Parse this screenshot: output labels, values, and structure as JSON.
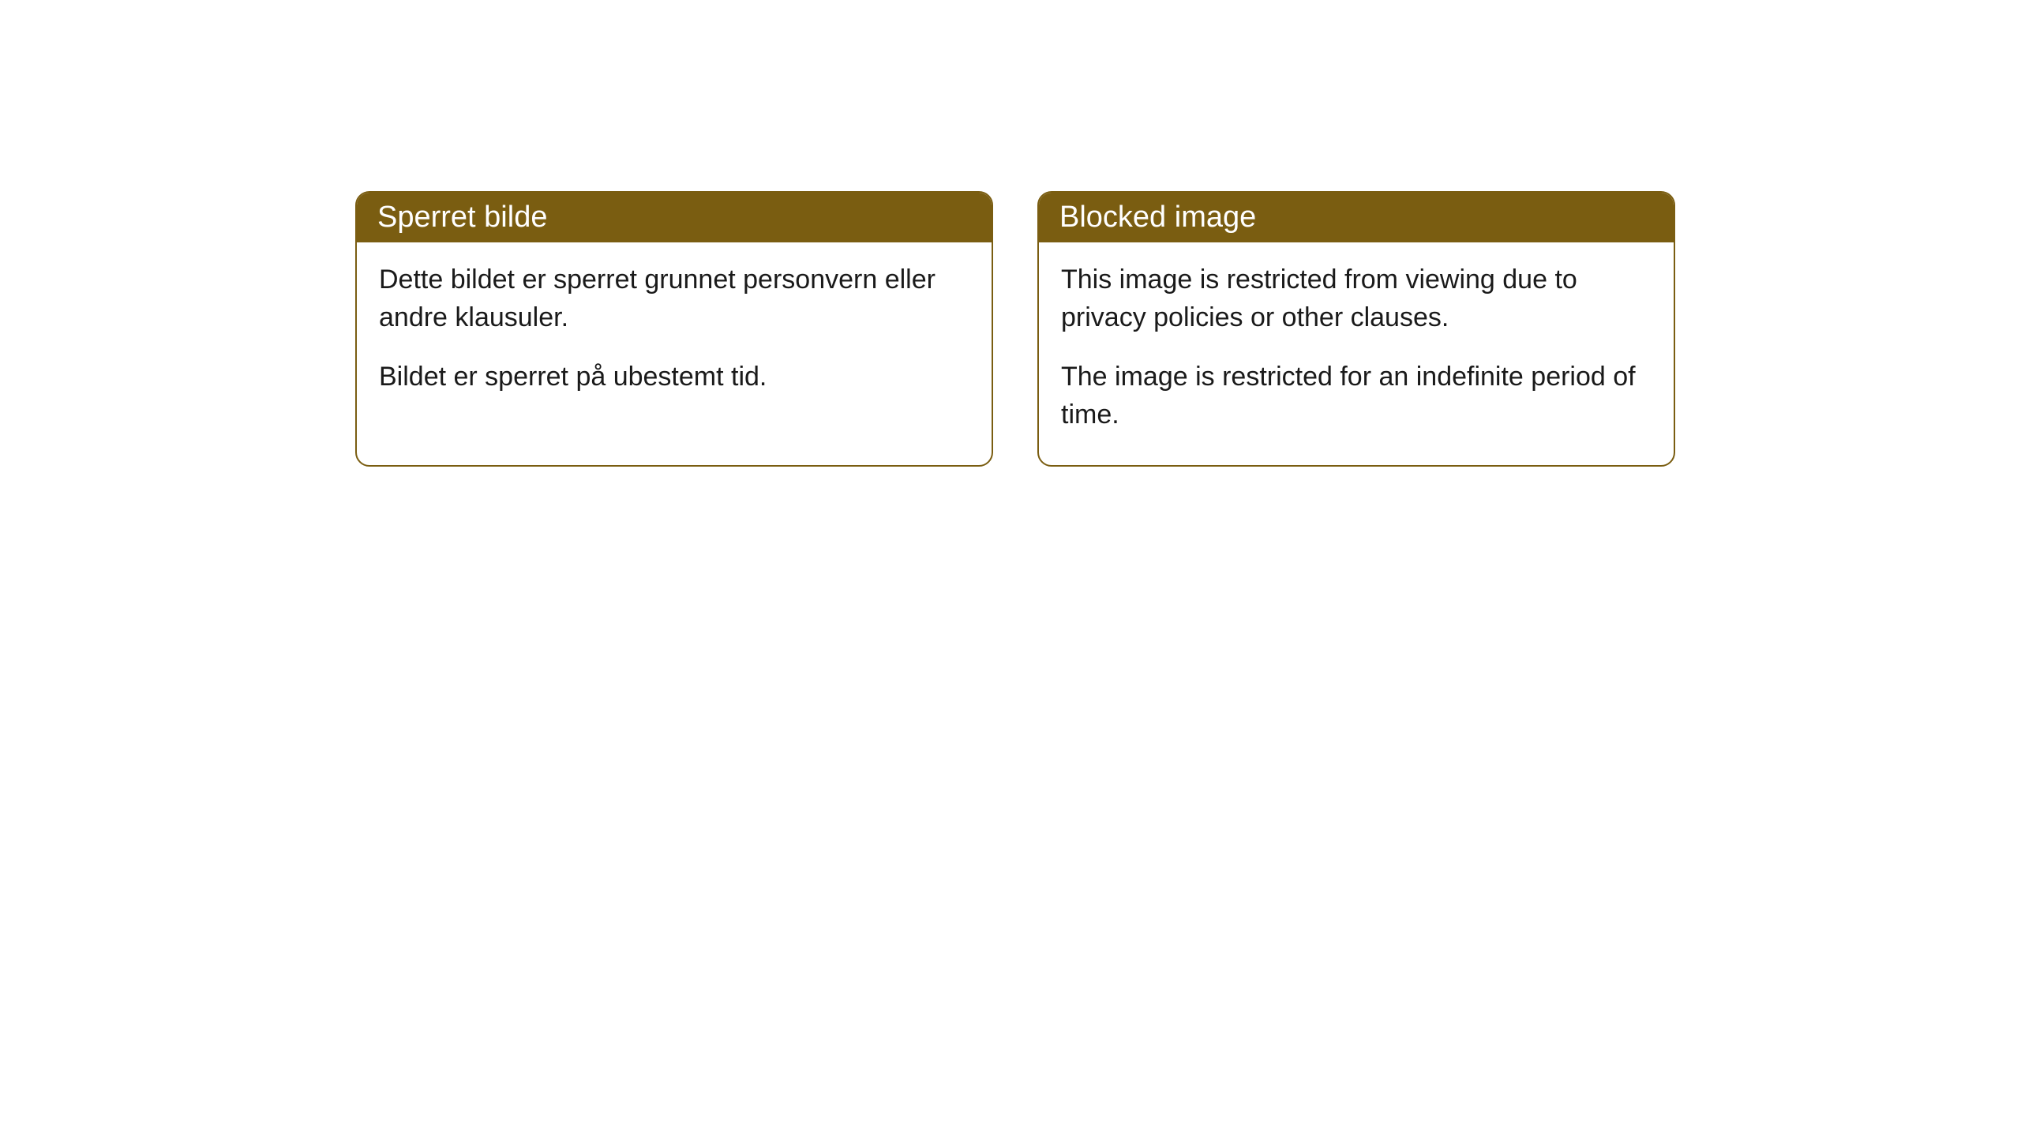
{
  "cards": [
    {
      "title": "Sperret bilde",
      "paragraph1": "Dette bildet er sperret grunnet personvern eller andre klausuler.",
      "paragraph2": "Bildet er sperret på ubestemt tid."
    },
    {
      "title": "Blocked image",
      "paragraph1": "This image is restricted from viewing due to privacy policies or other clauses.",
      "paragraph2": "The image is restricted for an indefinite period of time."
    }
  ],
  "style": {
    "header_background": "#7a5d11",
    "header_text_color": "#ffffff",
    "border_color": "#7a5d11",
    "body_background": "#ffffff",
    "body_text_color": "#1a1a1a",
    "border_radius": 18,
    "title_fontsize": 38,
    "body_fontsize": 34
  }
}
